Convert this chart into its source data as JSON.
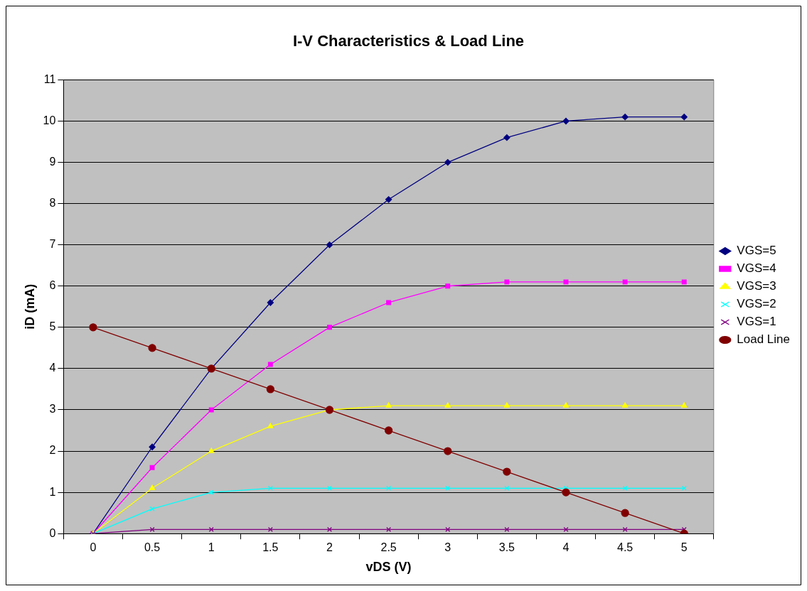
{
  "chart_data": {
    "type": "line",
    "title": "I-V Characteristics & Load Line",
    "xlabel": "vDS (V)",
    "ylabel": "iD (mA)",
    "categories": [
      "0",
      "0.5",
      "1",
      "1.5",
      "2",
      "2.5",
      "3",
      "3.5",
      "4",
      "4.5",
      "5"
    ],
    "ylim": [
      0,
      11
    ],
    "yticks": [
      0,
      1,
      2,
      3,
      4,
      5,
      6,
      7,
      8,
      9,
      10,
      11
    ],
    "grid": "y",
    "legend": "right",
    "series": [
      {
        "name": "VGS=5",
        "color": "#000080",
        "marker": "diamond",
        "values": [
          0,
          2.1,
          4,
          5.6,
          7,
          8.1,
          9,
          9.6,
          10,
          10.1,
          10.1
        ]
      },
      {
        "name": "VGS=4",
        "color": "#ff00ff",
        "marker": "square",
        "values": [
          0,
          1.6,
          3,
          4.1,
          5,
          5.6,
          6,
          6.1,
          6.1,
          6.1,
          6.1
        ]
      },
      {
        "name": "VGS=3",
        "color": "#ffff00",
        "marker": "triangle",
        "values": [
          0,
          1.1,
          2,
          2.6,
          3,
          3.1,
          3.1,
          3.1,
          3.1,
          3.1,
          3.1
        ]
      },
      {
        "name": "VGS=2",
        "color": "#00ffff",
        "marker": "cross",
        "values": [
          0,
          0.6,
          1,
          1.1,
          1.1,
          1.1,
          1.1,
          1.1,
          1.1,
          1.1,
          1.1
        ]
      },
      {
        "name": "VGS=1",
        "color": "#800080",
        "marker": "cross",
        "values": [
          0,
          0.1,
          0.1,
          0.1,
          0.1,
          0.1,
          0.1,
          0.1,
          0.1,
          0.1,
          0.1
        ]
      },
      {
        "name": "Load Line",
        "color": "#800000",
        "marker": "circle",
        "values": [
          5,
          4.5,
          4,
          3.5,
          3,
          2.5,
          2,
          1.5,
          1,
          0.5,
          0
        ]
      }
    ]
  }
}
